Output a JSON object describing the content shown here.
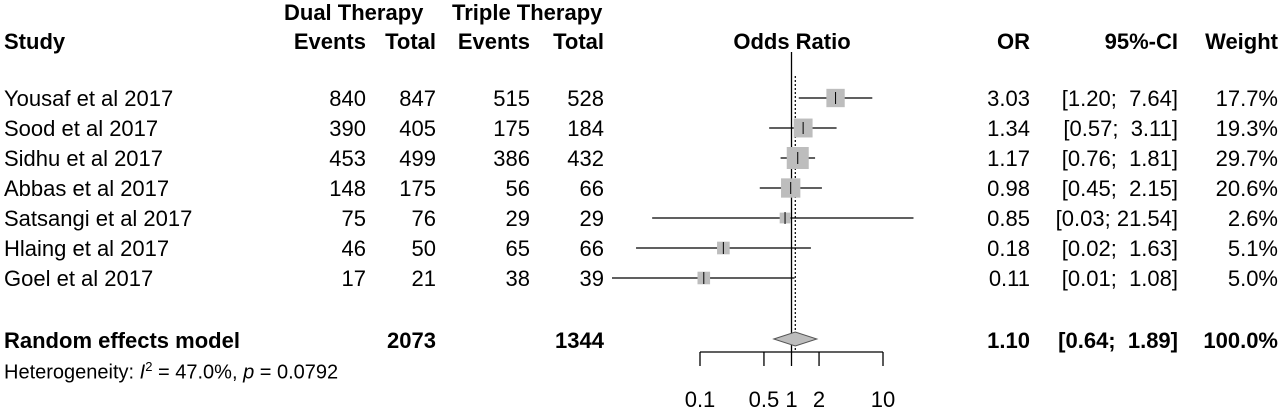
{
  "header": {
    "group1": "Dual Therapy",
    "group2": "Triple Therapy",
    "study": "Study",
    "events1": "Events",
    "total1": "Total",
    "events2": "Events",
    "total2": "Total",
    "odds_ratio": "Odds Ratio",
    "or": "OR",
    "ci": "95%-CI",
    "weight": "Weight"
  },
  "rows": [
    {
      "study": "Yousaf et al 2017",
      "e1": "840",
      "t1": "847",
      "e2": "515",
      "t2": "528",
      "or": "3.03",
      "ci": "[1.20;  7.64]",
      "weight": "17.7%"
    },
    {
      "study": "Sood et al 2017",
      "e1": "390",
      "t1": "405",
      "e2": "175",
      "t2": "184",
      "or": "1.34",
      "ci": "[0.57;  3.11]",
      "weight": "19.3%"
    },
    {
      "study": "Sidhu et al 2017",
      "e1": "453",
      "t1": "499",
      "e2": "386",
      "t2": "432",
      "or": "1.17",
      "ci": "[0.76;  1.81]",
      "weight": "29.7%"
    },
    {
      "study": "Abbas et al 2017",
      "e1": "148",
      "t1": "175",
      "e2": "56",
      "t2": "66",
      "or": "0.98",
      "ci": "[0.45;  2.15]",
      "weight": "20.6%"
    },
    {
      "study": "Satsangi et al 2017",
      "e1": "75",
      "t1": "76",
      "e2": "29",
      "t2": "29",
      "or": "0.85",
      "ci": "[0.03; 21.54]",
      "weight": "2.6%"
    },
    {
      "study": "Hlaing et al 2017",
      "e1": "46",
      "t1": "50",
      "e2": "65",
      "t2": "66",
      "or": "0.18",
      "ci": "[0.02;  1.63]",
      "weight": "5.1%"
    },
    {
      "study": "Goel et al 2017",
      "e1": "17",
      "t1": "21",
      "e2": "38",
      "t2": "39",
      "or": "0.11",
      "ci": "[0.01;  1.08]",
      "weight": "5.0%"
    }
  ],
  "summary": {
    "label": "Random effects model",
    "total1": "2073",
    "total2": "1344",
    "or": "1.10",
    "ci": "[0.64;  1.89]",
    "weight": "100.0%"
  },
  "heterogeneity": {
    "prefix": "Heterogeneity: ",
    "i_symbol": "I",
    "i_exponent": "2",
    "i_value": " = 47.0%, ",
    "p_symbol": "p",
    "p_value": " = 0.0792"
  },
  "chart_data": {
    "type": "forest",
    "scale": "log",
    "xlim": [
      0.1,
      10
    ],
    "x_ticks": [
      0.1,
      0.5,
      1,
      2,
      10
    ],
    "x_tick_labels": [
      "0.1",
      "0.5",
      "1",
      "2",
      "10"
    ],
    "reference_line": 1,
    "pooled_line": 1.1,
    "studies": [
      {
        "name": "Yousaf et al 2017",
        "or": 3.03,
        "lower": 1.2,
        "upper": 7.64,
        "weight": 17.7
      },
      {
        "name": "Sood et al 2017",
        "or": 1.34,
        "lower": 0.57,
        "upper": 3.11,
        "weight": 19.3
      },
      {
        "name": "Sidhu et al 2017",
        "or": 1.17,
        "lower": 0.76,
        "upper": 1.81,
        "weight": 29.7
      },
      {
        "name": "Abbas et al 2017",
        "or": 0.98,
        "lower": 0.45,
        "upper": 2.15,
        "weight": 20.6
      },
      {
        "name": "Satsangi et al 2017",
        "or": 0.85,
        "lower": 0.03,
        "upper": 21.54,
        "weight": 2.6
      },
      {
        "name": "Hlaing et al 2017",
        "or": 0.18,
        "lower": 0.02,
        "upper": 1.63,
        "weight": 5.1
      },
      {
        "name": "Goel et al 2017",
        "or": 0.11,
        "lower": 0.01,
        "upper": 1.08,
        "weight": 5.0
      }
    ],
    "pooled": {
      "name": "Random effects model",
      "or": 1.1,
      "lower": 0.64,
      "upper": 1.89,
      "weight": 100.0
    }
  }
}
